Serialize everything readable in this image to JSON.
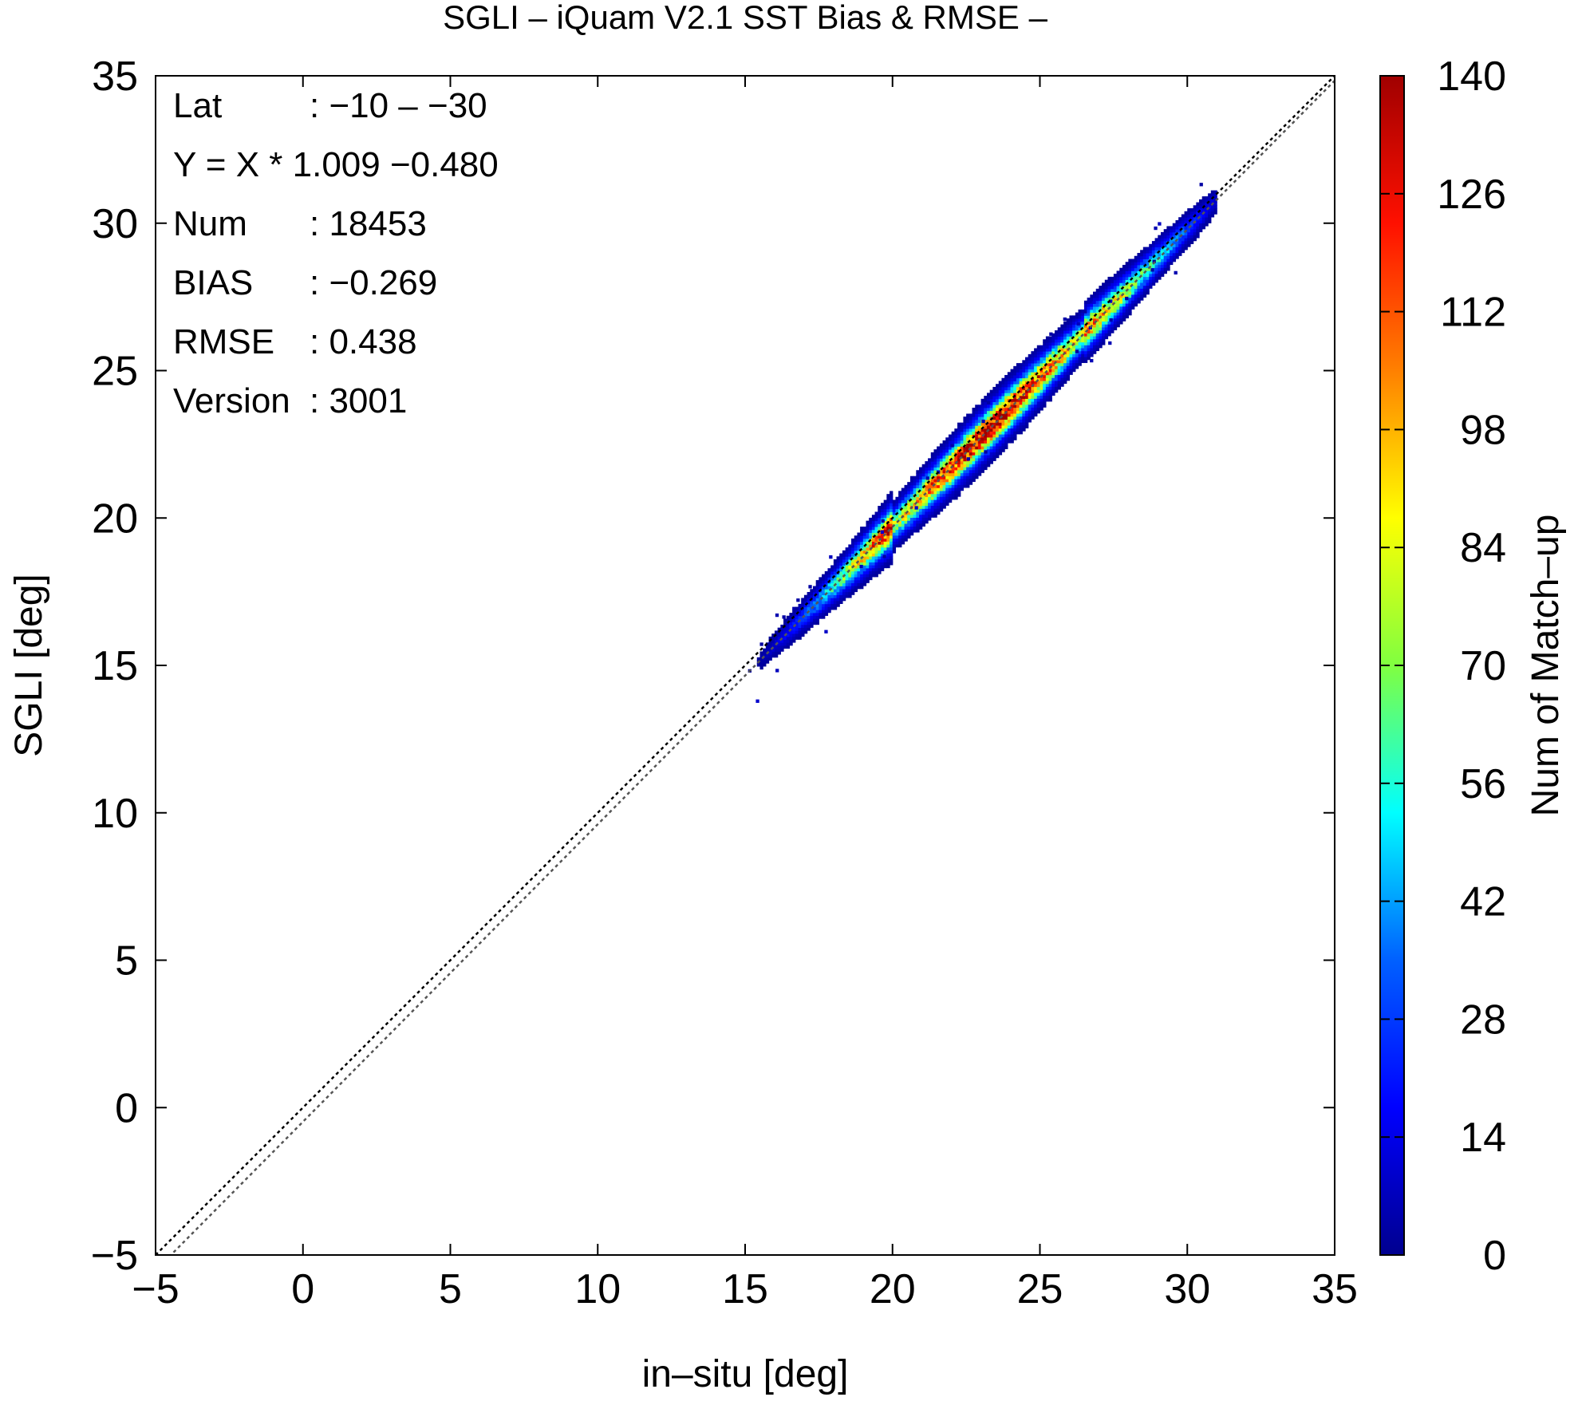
{
  "chart_data": {
    "type": "heatmap",
    "title": "SGLI – iQuam V2.1 SST Bias & RMSE  –",
    "xlabel": "in–situ [deg]",
    "ylabel": "SGLI [deg]",
    "colorbar_label": "Num of Match–up",
    "xlim": [
      -5,
      35
    ],
    "ylim": [
      -5,
      35
    ],
    "clim": [
      0,
      140
    ],
    "x_ticks": [
      -5,
      0,
      5,
      10,
      15,
      20,
      25,
      30,
      35
    ],
    "x_tick_labels": [
      "−5",
      "0",
      "5",
      "10",
      "15",
      "20",
      "25",
      "30",
      "35"
    ],
    "y_ticks": [
      -5,
      0,
      5,
      10,
      15,
      20,
      25,
      30,
      35
    ],
    "y_tick_labels": [
      "−5",
      "0",
      "5",
      "10",
      "15",
      "20",
      "25",
      "30",
      "35"
    ],
    "colorbar_ticks": [
      0,
      14,
      28,
      42,
      56,
      70,
      84,
      98,
      112,
      126,
      140
    ],
    "colorbar_tick_labels": [
      "0",
      "14",
      "28",
      "42",
      "56",
      "70",
      "84",
      "98",
      "112",
      "126",
      "140"
    ],
    "colormap": [
      "#00008f",
      "#0000ff",
      "#0080ff",
      "#00ffff",
      "#80ff80",
      "#ffff00",
      "#ff8000",
      "#ff0000",
      "#800000"
    ],
    "reference_lines": [
      {
        "slope": 1,
        "intercept": 0,
        "style": "dotted",
        "color": "#000000"
      },
      {
        "slope": 1.009,
        "intercept": -0.48,
        "style": "dotted",
        "color": "#555555"
      }
    ],
    "density_ridge": {
      "x_range": [
        15,
        31
      ],
      "core_x": [
        20,
        26.5
      ],
      "peak_count": 135,
      "dense_cells_count_approx": 18453
    },
    "stats": [
      {
        "label": "Lat",
        "sep": ":",
        "value": "−10 – −30"
      },
      {
        "label": "Y = X * 1.009 −0.480",
        "sep": "",
        "value": ""
      },
      {
        "label": "Num",
        "sep": ":",
        "value": "18453"
      },
      {
        "label": "BIAS",
        "sep": ":",
        "value": "−0.269"
      },
      {
        "label": "RMSE",
        "sep": ":",
        "value": "0.438"
      },
      {
        "label": "Version",
        "sep": ":",
        "value": "3001"
      }
    ]
  }
}
